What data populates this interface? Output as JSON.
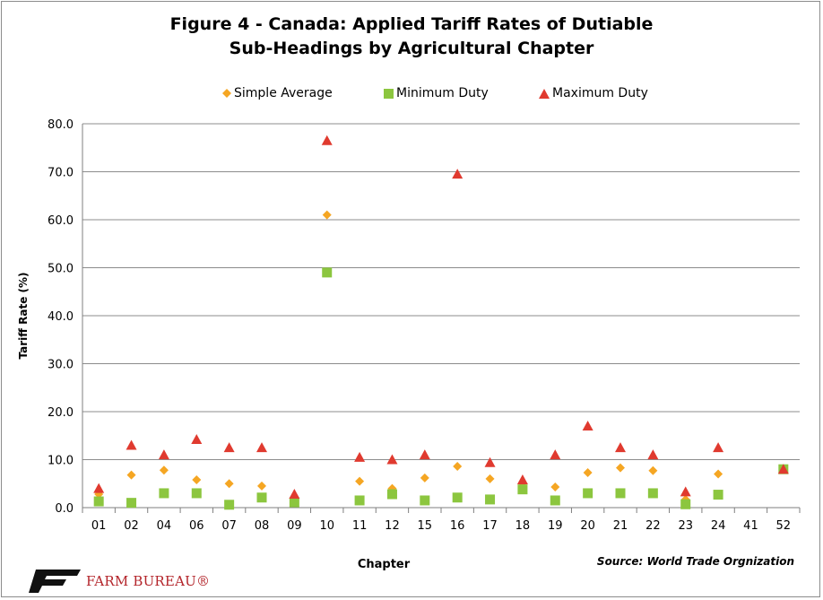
{
  "chart_data": {
    "type": "scatter",
    "title_lines": [
      "Figure 4 - Canada: Applied Tariff Rates of Dutiable",
      "Sub-Headings by Agricultural Chapter"
    ],
    "xlabel": "Chapter",
    "ylabel": "Tariff Rate (%)",
    "ylim": [
      0,
      80
    ],
    "yticks": [
      "0.0",
      "10.0",
      "20.0",
      "30.0",
      "40.0",
      "50.0",
      "60.0",
      "70.0",
      "80.0"
    ],
    "grid": true,
    "legend_position": "top",
    "categories": [
      "01",
      "02",
      "04",
      "06",
      "07",
      "08",
      "09",
      "10",
      "11",
      "12",
      "15",
      "16",
      "17",
      "18",
      "19",
      "20",
      "21",
      "22",
      "23",
      "24",
      "41",
      "52"
    ],
    "series": [
      {
        "name": "Simple Average",
        "marker": "diamond",
        "color": "#f5a623",
        "values": [
          2.8,
          6.8,
          7.8,
          5.8,
          5.0,
          4.5,
          2.2,
          61.0,
          5.5,
          4.0,
          6.2,
          8.6,
          6.0,
          4.5,
          4.3,
          7.3,
          8.3,
          7.7,
          1.7,
          7.0,
          null,
          8.0
        ]
      },
      {
        "name": "Minimum Duty",
        "marker": "square",
        "color": "#8cc63f",
        "values": [
          1.3,
          1.0,
          3.0,
          3.0,
          0.6,
          2.1,
          1.1,
          49.0,
          1.5,
          2.8,
          1.5,
          2.1,
          1.7,
          3.8,
          1.5,
          3.0,
          3.0,
          3.0,
          0.7,
          2.7,
          null,
          8.0
        ]
      },
      {
        "name": "Maximum Duty",
        "marker": "triangle",
        "color": "#e03a2f",
        "values": [
          4.0,
          13.0,
          11.0,
          14.2,
          12.5,
          12.5,
          2.8,
          76.5,
          10.5,
          10.0,
          11.0,
          69.5,
          9.4,
          5.8,
          11.0,
          17.0,
          12.5,
          11.0,
          3.3,
          12.5,
          null,
          8.0
        ]
      }
    ],
    "source": "Source: World Trade Orgnization"
  },
  "logo": {
    "text": "FARM BUREAU®",
    "color": "#b3242a"
  }
}
